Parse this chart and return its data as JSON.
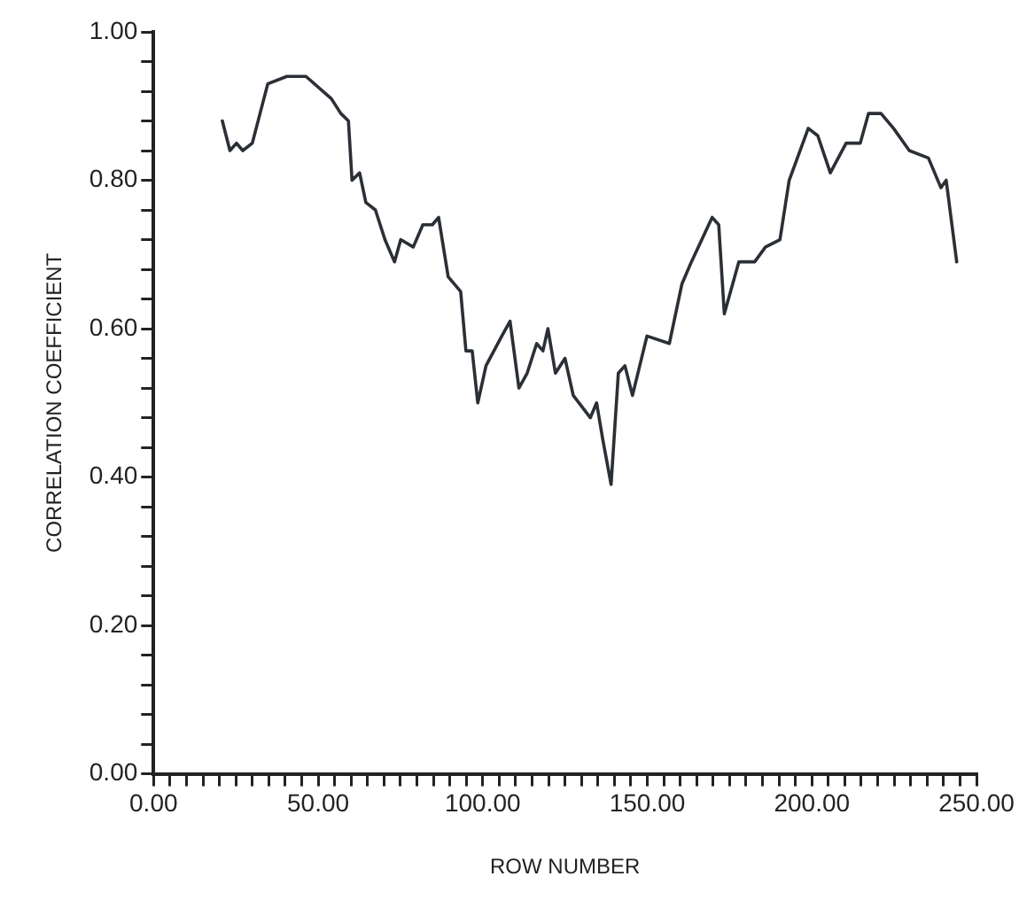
{
  "chart_data": {
    "type": "line",
    "xlabel": "ROW NUMBER",
    "ylabel": "CORRELATION COEFFICIENT",
    "x": [
      20.9,
      23.2,
      25.2,
      27.1,
      30.0,
      34.7,
      40.5,
      46.3,
      54.0,
      56.9,
      59.2,
      60.3,
      62.6,
      64.5,
      67.4,
      70.3,
      73.2,
      75.1,
      78.9,
      81.8,
      84.7,
      86.6,
      89.5,
      93.3,
      94.9,
      96.8,
      98.5,
      101.0,
      105.8,
      108.3,
      111.0,
      113.5,
      116.4,
      118.3,
      119.8,
      122.1,
      125.0,
      127.5,
      132.7,
      134.6,
      136.5,
      139.0,
      141.2,
      143.2,
      145.5,
      149.9,
      156.7,
      160.5,
      163.4,
      169.7,
      171.7,
      173.4,
      177.8,
      182.6,
      185.9,
      190.3,
      193.1,
      198.9,
      201.8,
      205.6,
      210.4,
      214.7,
      217.2,
      221.0,
      224.8,
      229.6,
      235.4,
      239.2,
      240.8,
      244.0
    ],
    "series": [
      {
        "color": "#2b2f36",
        "values": [
          0.88,
          0.84,
          0.85,
          0.84,
          0.85,
          0.93,
          0.94,
          0.94,
          0.91,
          0.89,
          0.88,
          0.8,
          0.81,
          0.77,
          0.76,
          0.72,
          0.69,
          0.72,
          0.71,
          0.74,
          0.74,
          0.75,
          0.67,
          0.65,
          0.57,
          0.57,
          0.5,
          0.55,
          0.59,
          0.61,
          0.52,
          0.54,
          0.58,
          0.57,
          0.6,
          0.54,
          0.56,
          0.51,
          0.48,
          0.5,
          0.45,
          0.39,
          0.54,
          0.55,
          0.51,
          0.59,
          0.58,
          0.66,
          0.69,
          0.75,
          0.74,
          0.62,
          0.69,
          0.69,
          0.71,
          0.72,
          0.8,
          0.87,
          0.86,
          0.81,
          0.85,
          0.85,
          0.89,
          0.89,
          0.87,
          0.84,
          0.83,
          0.79,
          0.8,
          0.69
        ]
      }
    ],
    "xlim": [
      0,
      250
    ],
    "ylim": [
      0,
      1
    ],
    "xticks": [
      {
        "value": 0,
        "label": "0.00"
      },
      {
        "value": 5,
        "label": null
      },
      {
        "value": 10,
        "label": null
      },
      {
        "value": 15,
        "label": null
      },
      {
        "value": 20,
        "label": null
      },
      {
        "value": 25,
        "label": null
      },
      {
        "value": 30,
        "label": null
      },
      {
        "value": 35,
        "label": null
      },
      {
        "value": 40,
        "label": null
      },
      {
        "value": 45,
        "label": null
      },
      {
        "value": 50,
        "label": "50.00"
      },
      {
        "value": 55,
        "label": null
      },
      {
        "value": 60,
        "label": null
      },
      {
        "value": 65,
        "label": null
      },
      {
        "value": 70,
        "label": null
      },
      {
        "value": 75,
        "label": null
      },
      {
        "value": 80,
        "label": null
      },
      {
        "value": 85,
        "label": null
      },
      {
        "value": 90,
        "label": null
      },
      {
        "value": 95,
        "label": null
      },
      {
        "value": 100,
        "label": "100.00"
      },
      {
        "value": 105,
        "label": null
      },
      {
        "value": 110,
        "label": null
      },
      {
        "value": 115,
        "label": null
      },
      {
        "value": 120,
        "label": null
      },
      {
        "value": 125,
        "label": null
      },
      {
        "value": 130,
        "label": null
      },
      {
        "value": 135,
        "label": null
      },
      {
        "value": 140,
        "label": null
      },
      {
        "value": 145,
        "label": null
      },
      {
        "value": 150,
        "label": "150.00"
      },
      {
        "value": 155,
        "label": null
      },
      {
        "value": 160,
        "label": null
      },
      {
        "value": 165,
        "label": null
      },
      {
        "value": 170,
        "label": null
      },
      {
        "value": 175,
        "label": null
      },
      {
        "value": 180,
        "label": null
      },
      {
        "value": 185,
        "label": null
      },
      {
        "value": 190,
        "label": null
      },
      {
        "value": 195,
        "label": null
      },
      {
        "value": 200,
        "label": "200.00"
      },
      {
        "value": 205,
        "label": null
      },
      {
        "value": 210,
        "label": null
      },
      {
        "value": 215,
        "label": null
      },
      {
        "value": 220,
        "label": null
      },
      {
        "value": 225,
        "label": null
      },
      {
        "value": 230,
        "label": null
      },
      {
        "value": 235,
        "label": null
      },
      {
        "value": 240,
        "label": null
      },
      {
        "value": 245,
        "label": null
      },
      {
        "value": 250,
        "label": "250.00"
      }
    ],
    "yticks": [
      {
        "value": 0,
        "label": "0.00"
      },
      {
        "value": 0.04,
        "label": null
      },
      {
        "value": 0.08,
        "label": null
      },
      {
        "value": 0.12,
        "label": null
      },
      {
        "value": 0.16,
        "label": null
      },
      {
        "value": 0.2,
        "label": "0.20"
      },
      {
        "value": 0.24,
        "label": null
      },
      {
        "value": 0.28,
        "label": null
      },
      {
        "value": 0.32,
        "label": null
      },
      {
        "value": 0.36,
        "label": null
      },
      {
        "value": 0.4,
        "label": "0.40"
      },
      {
        "value": 0.44,
        "label": null
      },
      {
        "value": 0.48,
        "label": null
      },
      {
        "value": 0.52,
        "label": null
      },
      {
        "value": 0.56,
        "label": null
      },
      {
        "value": 0.6,
        "label": "0.60"
      },
      {
        "value": 0.64,
        "label": null
      },
      {
        "value": 0.68,
        "label": null
      },
      {
        "value": 0.72,
        "label": null
      },
      {
        "value": 0.76,
        "label": null
      },
      {
        "value": 0.8,
        "label": "0.80"
      },
      {
        "value": 0.84,
        "label": null
      },
      {
        "value": 0.88,
        "label": null
      },
      {
        "value": 0.92,
        "label": null
      },
      {
        "value": 0.96,
        "label": null
      },
      {
        "value": 1,
        "label": "1.00"
      }
    ],
    "grid": false,
    "legend": false,
    "marker": "none",
    "line_style": "solid"
  }
}
